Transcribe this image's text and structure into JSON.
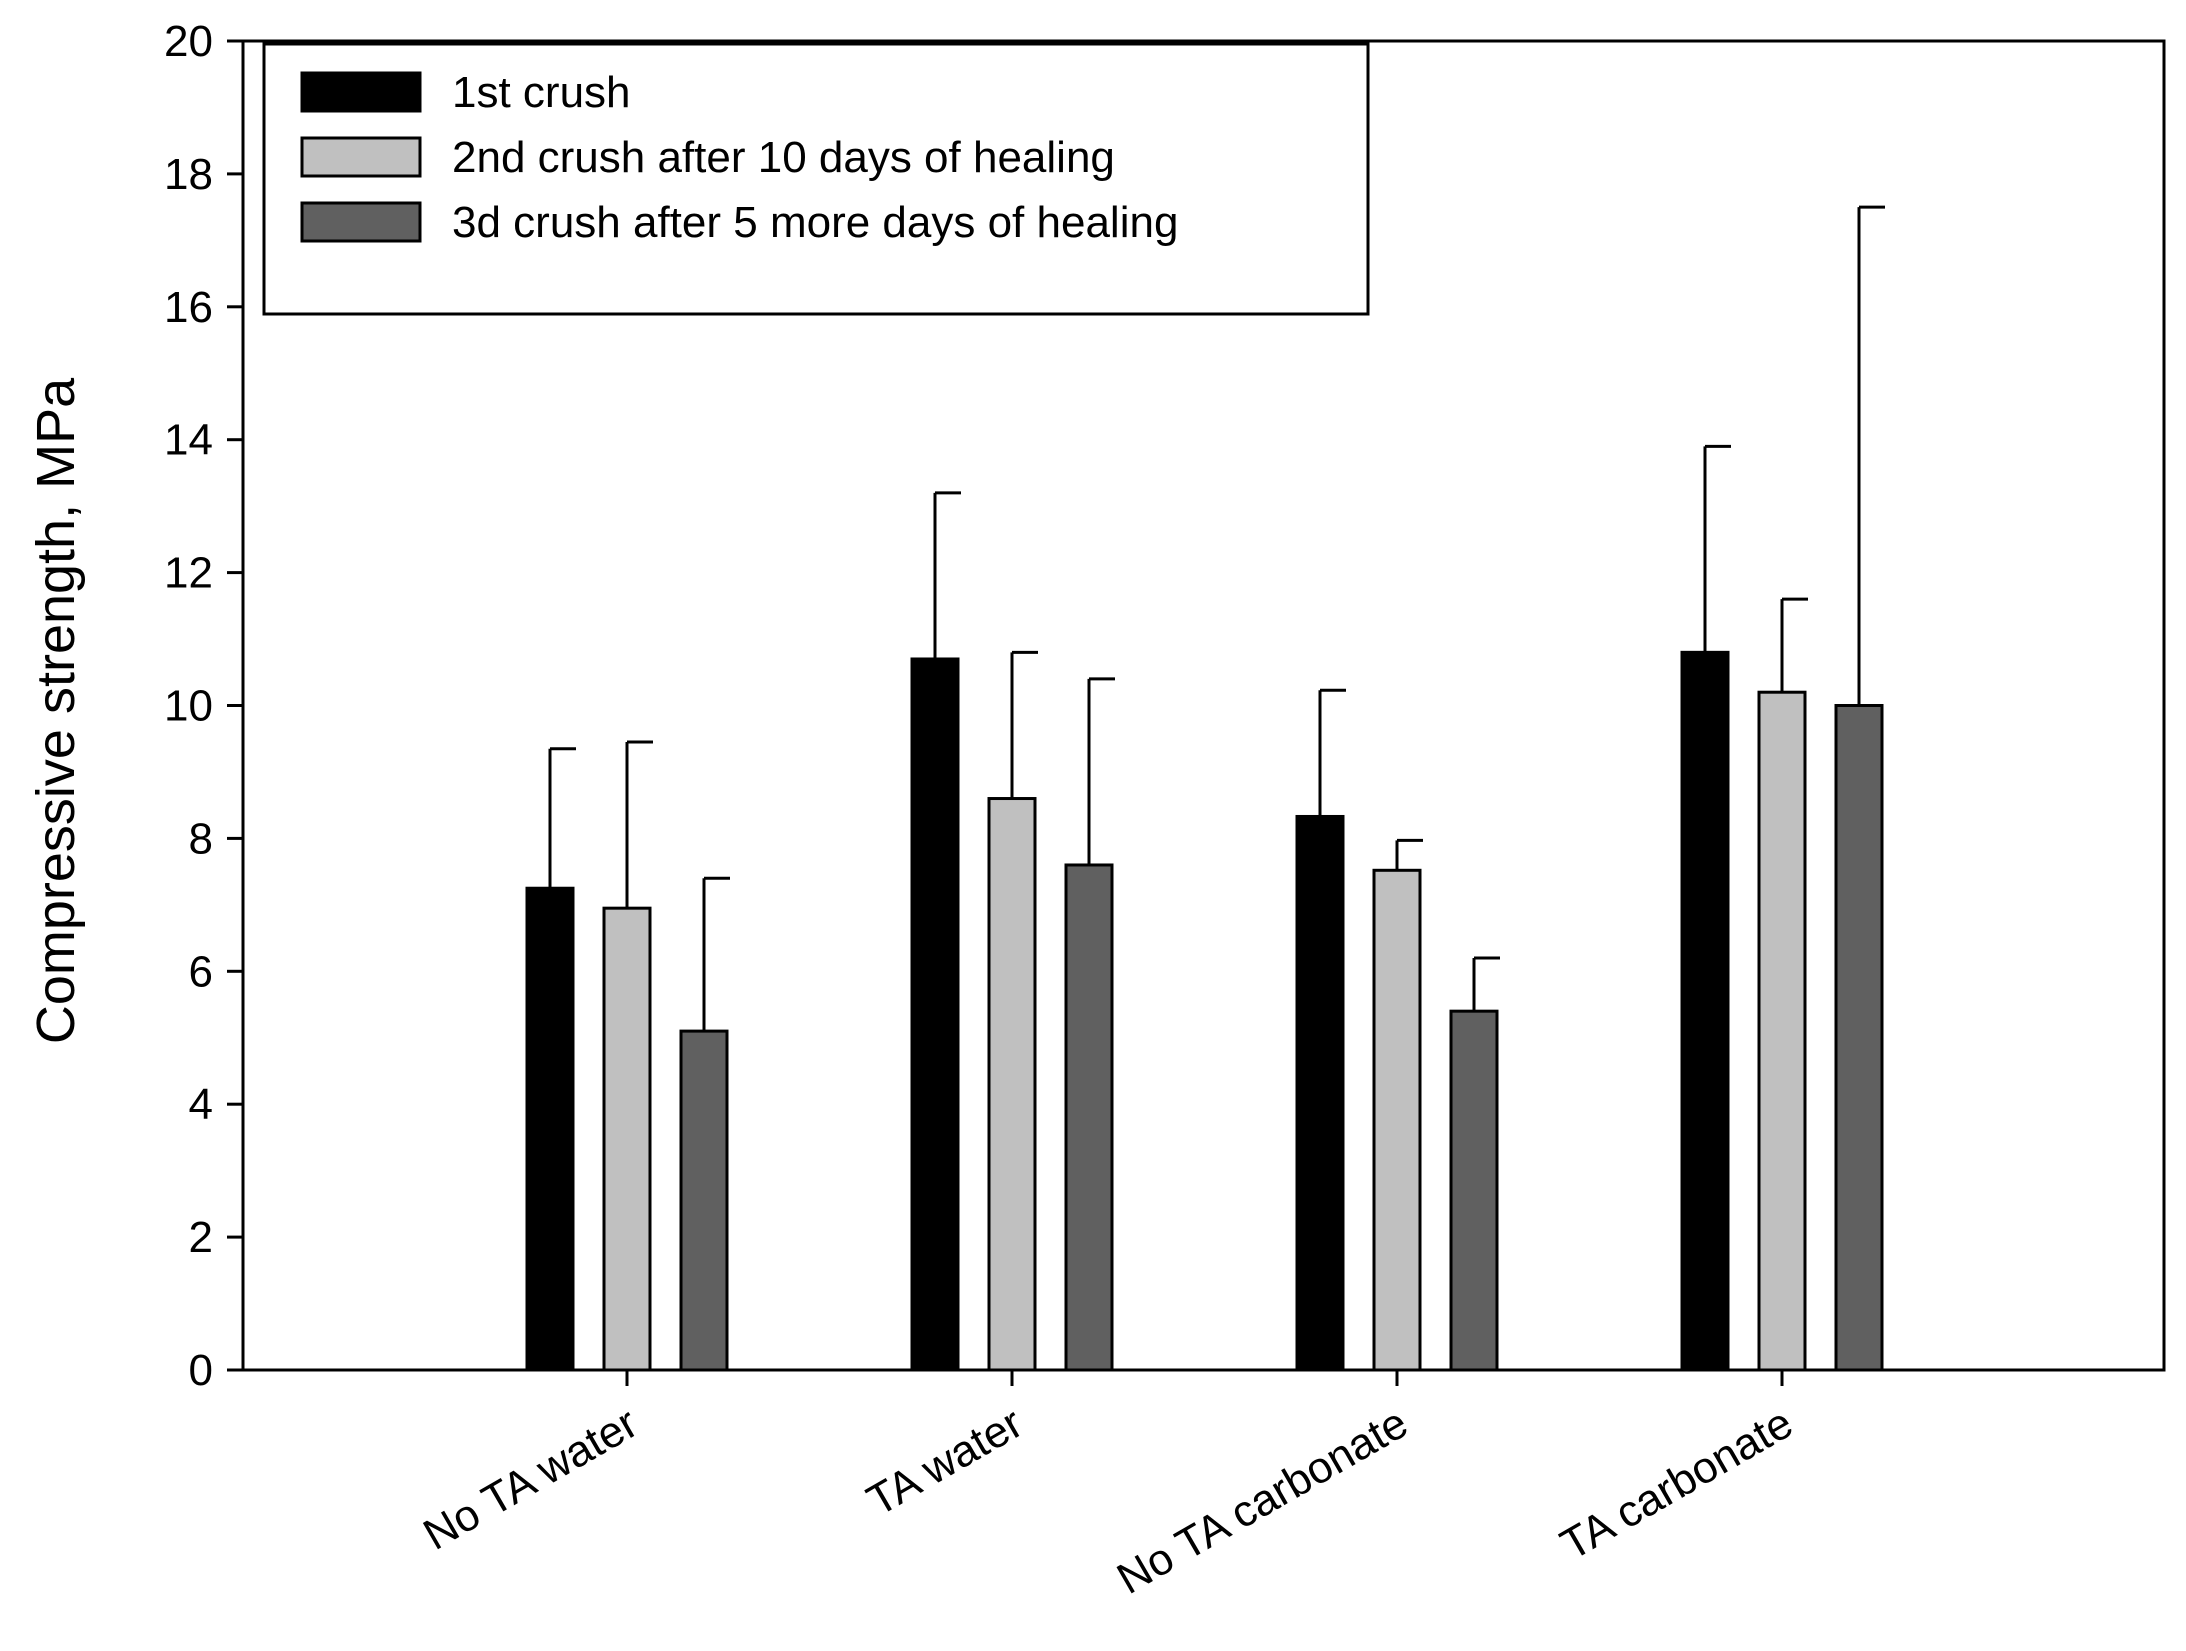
{
  "chart_data": {
    "type": "bar",
    "title": "",
    "xlabel": "",
    "ylabel": "Compressive strength, MPa",
    "ylim": [
      0,
      20
    ],
    "yticks": [
      0,
      2,
      4,
      6,
      8,
      10,
      12,
      14,
      16,
      18,
      20
    ],
    "grid": false,
    "legend_position": "top-left",
    "categories": [
      "No TA water",
      "TA water",
      "No TA carbonate",
      "TA carbonate"
    ],
    "series": [
      {
        "name": "1st crush",
        "color": "#000000",
        "values": [
          7.25,
          10.7,
          8.33,
          10.8
        ],
        "error_plus": [
          2.1,
          2.5,
          1.9,
          3.1
        ]
      },
      {
        "name": "2nd crush after 10 days of healing",
        "color": "#c0c0c0",
        "values": [
          6.95,
          8.6,
          7.52,
          10.2
        ],
        "error_plus": [
          2.5,
          2.2,
          0.45,
          1.4
        ]
      },
      {
        "name": "3d crush after 5 more days of healing",
        "color": "#606060",
        "values": [
          5.1,
          7.6,
          5.4,
          10.0
        ],
        "error_plus": [
          2.3,
          2.8,
          0.8,
          7.5
        ]
      }
    ]
  }
}
